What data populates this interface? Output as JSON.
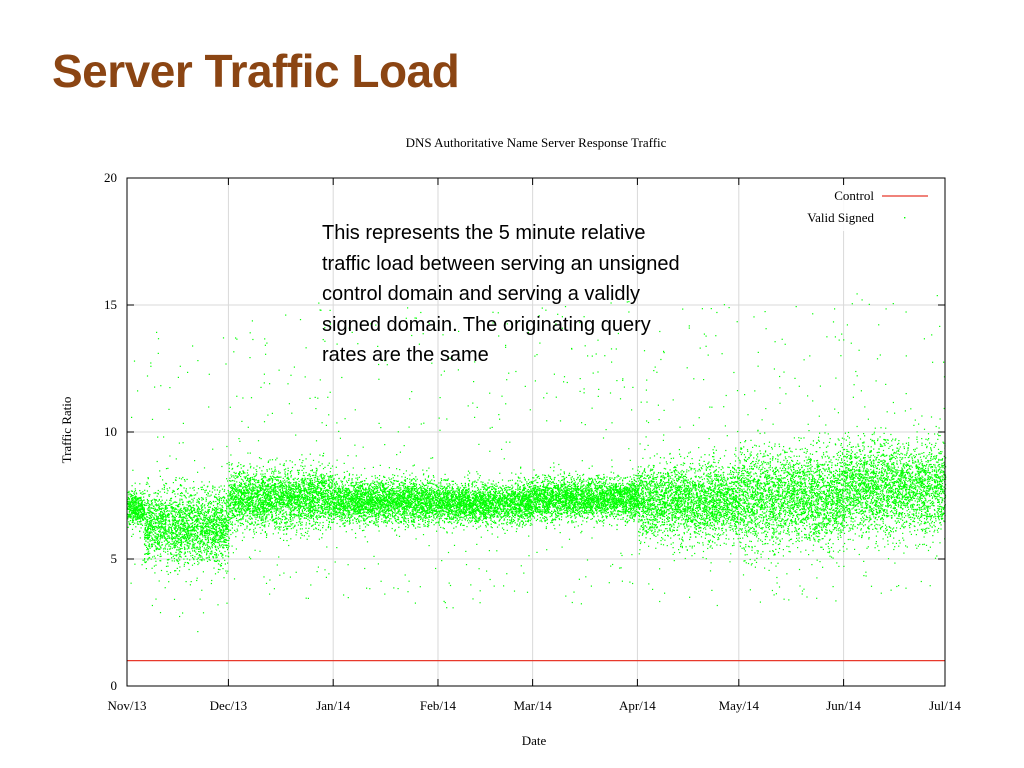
{
  "slide": {
    "title": "Server Traffic Load",
    "note": "This represents the 5 minute relative traffic load between serving an unsigned control domain and serving a validly signed domain. The originating query rates are the same"
  },
  "colors": {
    "title": "#8B4513",
    "control": "#e8382b",
    "valid_signed": "#00ff00",
    "grid": "#d9d9d9"
  },
  "chart_data": {
    "type": "scatter",
    "title": "DNS Authoritative Name Server Response Traffic",
    "xlabel": "Date",
    "ylabel": "Traffic Ratio",
    "x_ticks": [
      "Nov/13",
      "Dec/13",
      "Jan/14",
      "Feb/14",
      "Mar/14",
      "Apr/14",
      "May/14",
      "Jun/14",
      "Jul/14"
    ],
    "xlim": [
      "2013-11-01",
      "2014-07-01"
    ],
    "y_ticks": [
      0,
      5,
      10,
      15,
      20
    ],
    "ylim": [
      0,
      20
    ],
    "grid": true,
    "legend_position": "top-right",
    "series": [
      {
        "name": "Control",
        "kind": "line",
        "points": [
          {
            "date": "2013-11-01",
            "value": 1.0
          },
          {
            "date": "2014-07-01",
            "value": 1.0
          }
        ]
      },
      {
        "name": "Valid Signed",
        "kind": "scatter",
        "summary_by_period": [
          {
            "from": "2013-11-01",
            "to": "2013-11-06",
            "median": 7.0,
            "band_low": 6.3,
            "band_high": 7.6
          },
          {
            "from": "2013-11-06",
            "to": "2013-12-01",
            "median": 6.3,
            "band_low": 4.8,
            "band_high": 7.7
          },
          {
            "from": "2013-12-01",
            "to": "2014-01-01",
            "median": 7.4,
            "band_low": 6.3,
            "band_high": 8.6
          },
          {
            "from": "2014-01-01",
            "to": "2014-02-01",
            "median": 7.3,
            "band_low": 6.5,
            "band_high": 8.2
          },
          {
            "from": "2014-02-01",
            "to": "2014-03-01",
            "median": 7.2,
            "band_low": 6.4,
            "band_high": 8.0
          },
          {
            "from": "2014-03-01",
            "to": "2014-04-01",
            "median": 7.4,
            "band_low": 6.6,
            "band_high": 8.2
          },
          {
            "from": "2014-04-01",
            "to": "2014-05-01",
            "median": 7.3,
            "band_low": 5.8,
            "band_high": 8.8
          },
          {
            "from": "2014-05-01",
            "to": "2014-06-01",
            "median": 7.4,
            "band_low": 5.5,
            "band_high": 9.2
          },
          {
            "from": "2014-06-01",
            "to": "2014-07-01",
            "median": 7.8,
            "band_low": 6.0,
            "band_high": 9.6
          }
        ]
      }
    ]
  }
}
